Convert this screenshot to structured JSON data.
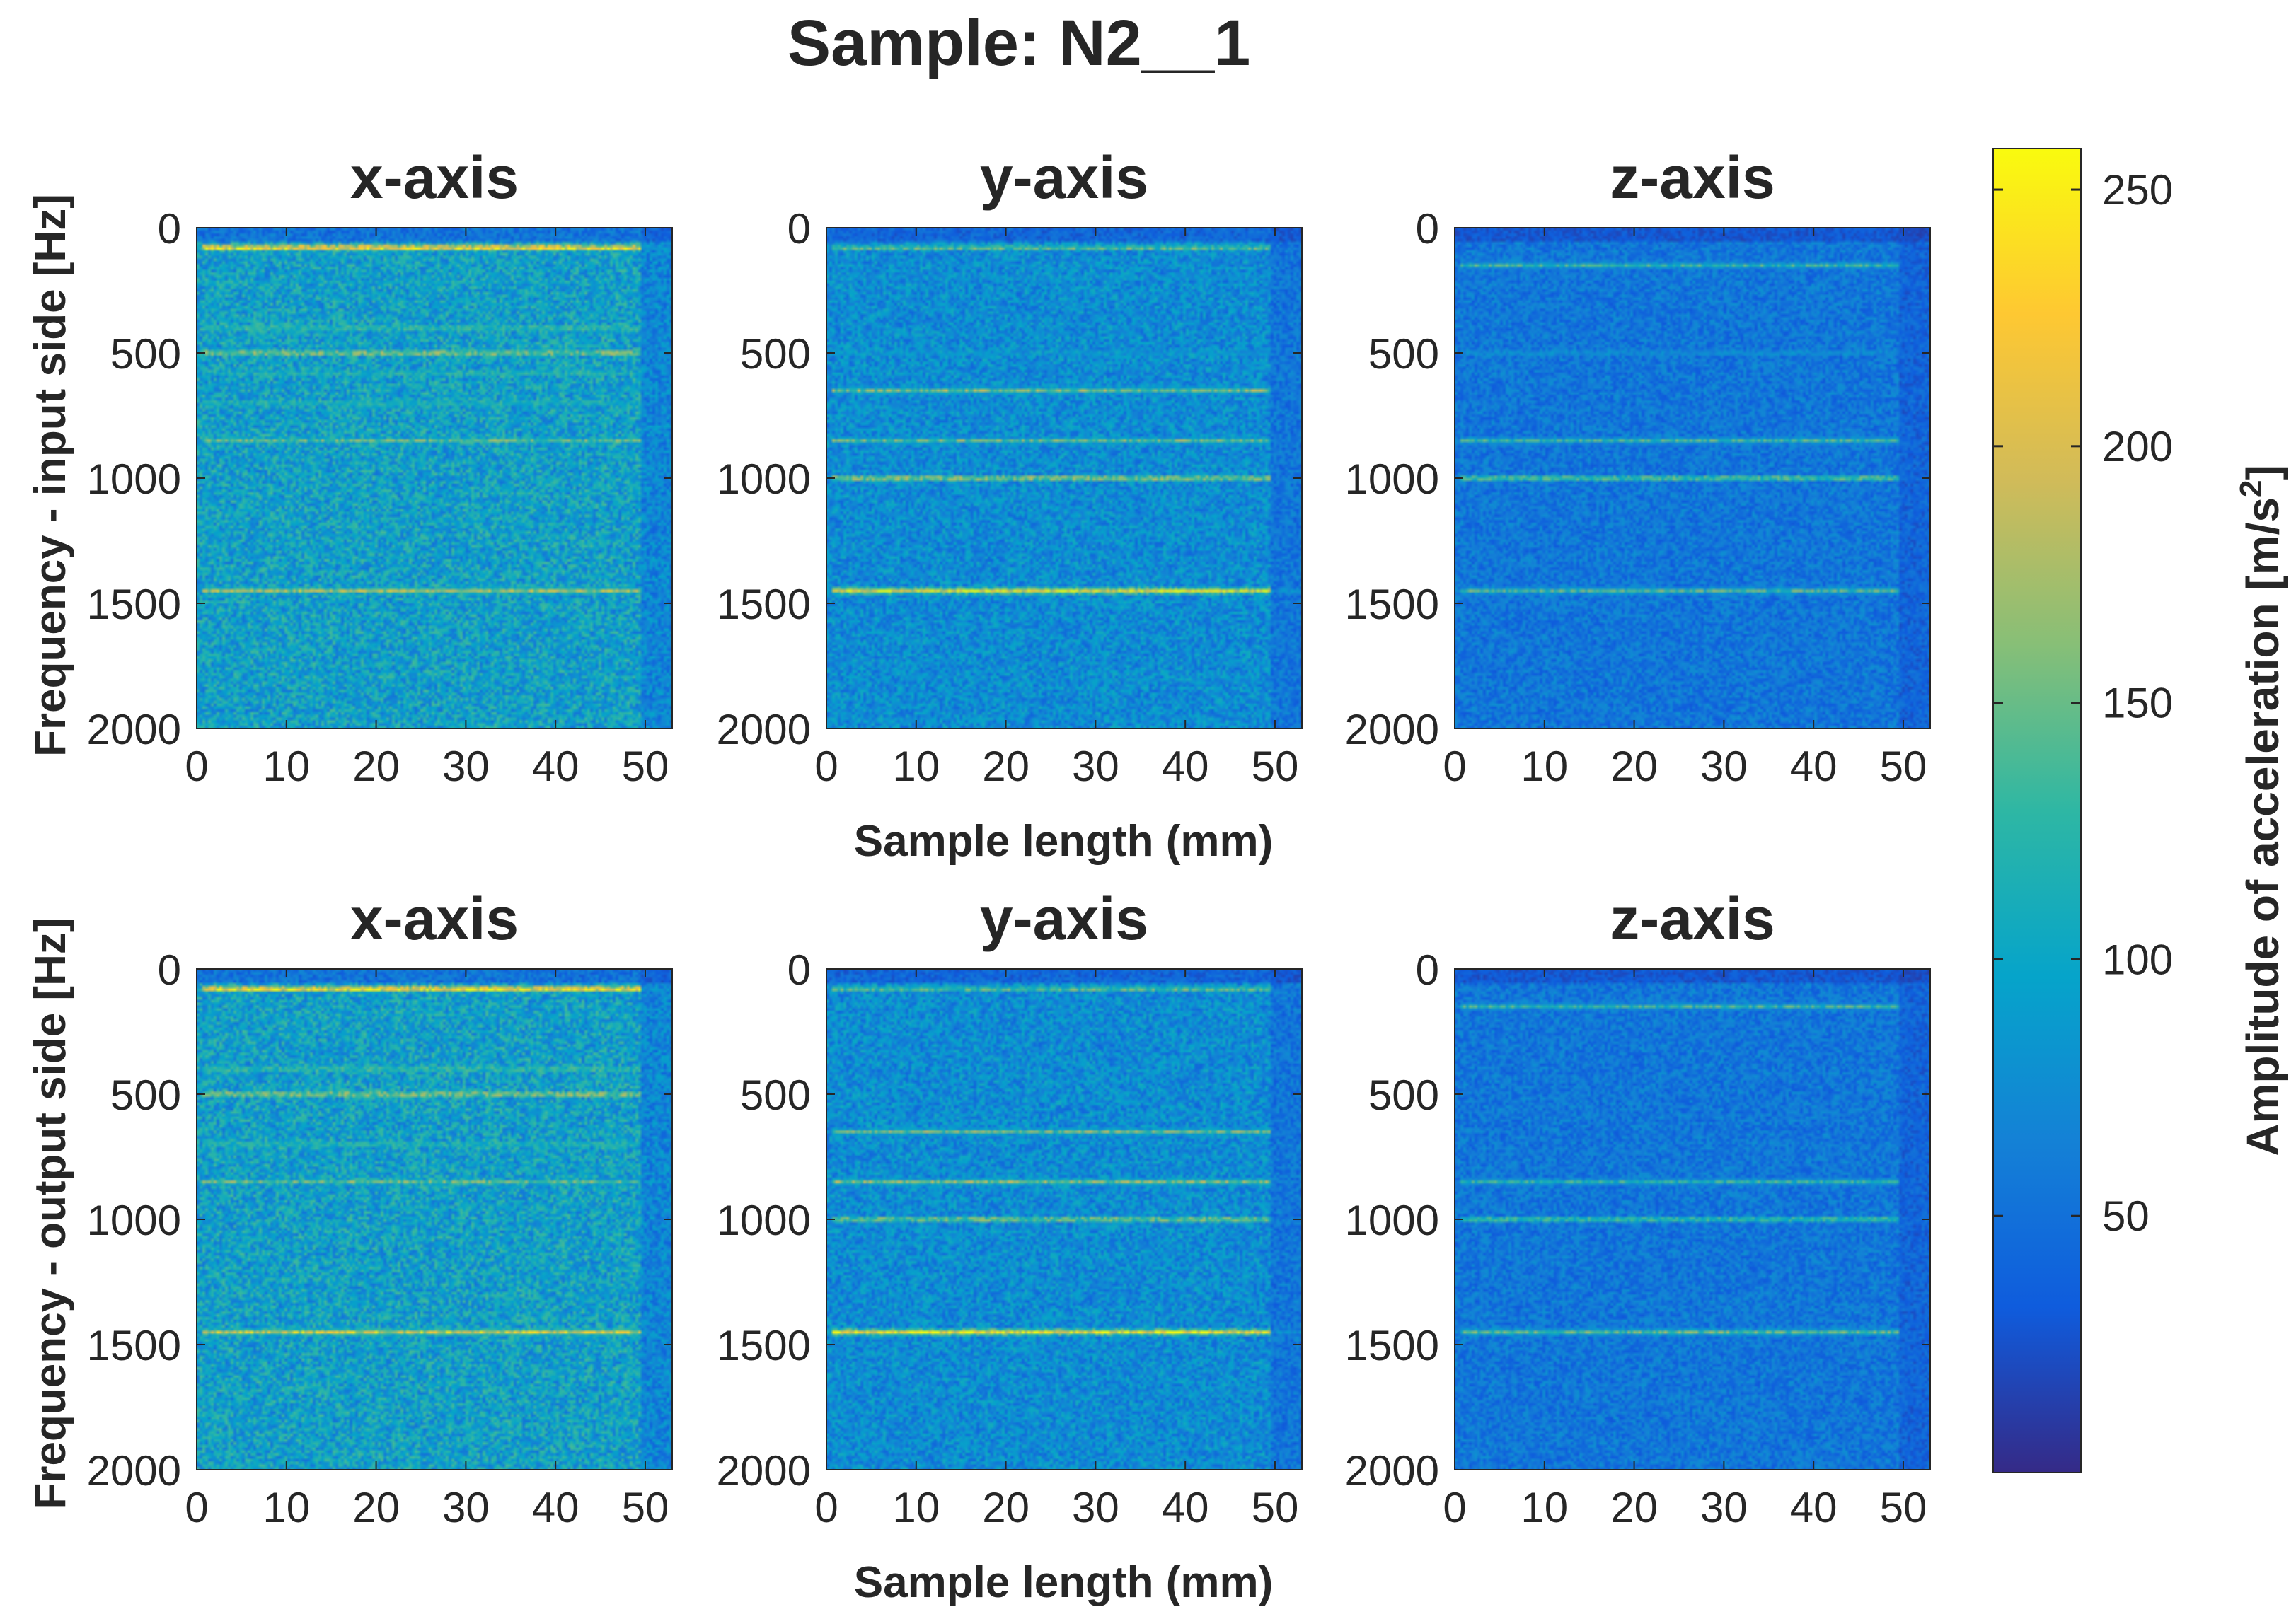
{
  "chart_data": {
    "type": "heatmap",
    "title": "Sample: N2__1",
    "colormap": "parula",
    "colormap_stops": [
      "#352a87",
      "#0f5cdd",
      "#1481d6",
      "#06a4ca",
      "#2eb7a4",
      "#87bf77",
      "#d1bb59",
      "#fec832",
      "#f9fb0e"
    ],
    "x_range": [
      0,
      53
    ],
    "y_range": [
      0,
      2000
    ],
    "y_reversed": true,
    "x_ticks": [
      "0",
      "10",
      "20",
      "30",
      "40",
      "50"
    ],
    "y_ticks": [
      "0",
      "500",
      "1000",
      "1500",
      "2000"
    ],
    "xlabel": "Sample length (mm)",
    "ylabels": [
      "Frequency - input side [Hz]",
      "Frequency - output side [Hz]"
    ],
    "colorbar": {
      "label_main": "Amplitude of acceleration [m/s",
      "label_sup": "2",
      "label_end": "]",
      "range": [
        0,
        258
      ],
      "ticks": [
        "50",
        "100",
        "150",
        "200",
        "250"
      ]
    },
    "panels": [
      {
        "row": 0,
        "col": 0,
        "title": "x-axis",
        "base": 95,
        "lines": [
          [
            80,
            245
          ],
          [
            220,
            90
          ],
          [
            400,
            140
          ],
          [
            500,
            175
          ],
          [
            580,
            120
          ],
          [
            700,
            120
          ],
          [
            850,
            150
          ],
          [
            1450,
            190
          ]
        ]
      },
      {
        "row": 0,
        "col": 1,
        "title": "y-axis",
        "base": 75,
        "lines": [
          [
            80,
            150
          ],
          [
            200,
            80
          ],
          [
            500,
            90
          ],
          [
            650,
            160
          ],
          [
            850,
            150
          ],
          [
            1000,
            175
          ],
          [
            1450,
            235
          ]
        ]
      },
      {
        "row": 0,
        "col": 2,
        "title": "z-axis",
        "base": 55,
        "lines": [
          [
            150,
            130
          ],
          [
            500,
            85
          ],
          [
            850,
            135
          ],
          [
            1000,
            150
          ],
          [
            1450,
            145
          ]
        ]
      },
      {
        "row": 1,
        "col": 0,
        "title": "x-axis",
        "base": 95,
        "lines": [
          [
            80,
            245
          ],
          [
            180,
            85
          ],
          [
            400,
            140
          ],
          [
            500,
            175
          ],
          [
            700,
            130
          ],
          [
            850,
            150
          ],
          [
            1450,
            205
          ]
        ]
      },
      {
        "row": 1,
        "col": 1,
        "title": "y-axis",
        "base": 75,
        "lines": [
          [
            80,
            150
          ],
          [
            650,
            160
          ],
          [
            850,
            165
          ],
          [
            1000,
            165
          ],
          [
            1450,
            240
          ]
        ]
      },
      {
        "row": 1,
        "col": 2,
        "title": "z-axis",
        "base": 55,
        "lines": [
          [
            150,
            130
          ],
          [
            850,
            125
          ],
          [
            1000,
            140
          ],
          [
            1450,
            150
          ]
        ]
      }
    ]
  }
}
